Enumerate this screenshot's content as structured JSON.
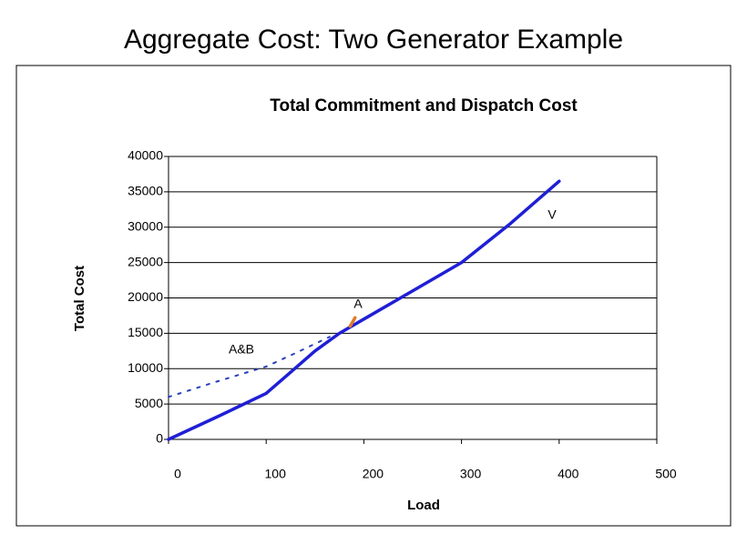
{
  "slide_title": "Aggregate Cost: Two Generator Example",
  "chart_data": {
    "type": "line",
    "title": "Total Commitment and Dispatch Cost",
    "x_label": "Load",
    "y_label": "Total Cost",
    "xlim": [
      0,
      500
    ],
    "xticks": [
      0,
      100,
      200,
      300,
      400,
      500
    ],
    "ylim": [
      0,
      40000
    ],
    "yticks": [
      0,
      5000,
      10000,
      15000,
      20000,
      25000,
      30000,
      35000,
      40000
    ],
    "grid": true,
    "series": [
      {
        "color": "#1f1fd6",
        "style": "solid",
        "x": [
          0,
          50,
          100,
          125,
          150,
          175,
          200,
          250,
          300,
          350,
          400
        ],
        "values": [
          0,
          3200,
          6500,
          9500,
          12500,
          15000,
          17000,
          21000,
          25000,
          30500,
          36500
        ]
      },
      {
        "color": "#2a3fc0",
        "style": "dashed",
        "x": [
          0,
          50,
          100,
          130,
          165
        ],
        "values": [
          6000,
          8200,
          10300,
          12200,
          14500
        ]
      },
      {
        "color": "#e07a2a",
        "style": "solid",
        "x": [
          186,
          191
        ],
        "values": [
          16000,
          17200
        ]
      }
    ],
    "annotations": [
      "A&B",
      "A",
      "V"
    ]
  }
}
